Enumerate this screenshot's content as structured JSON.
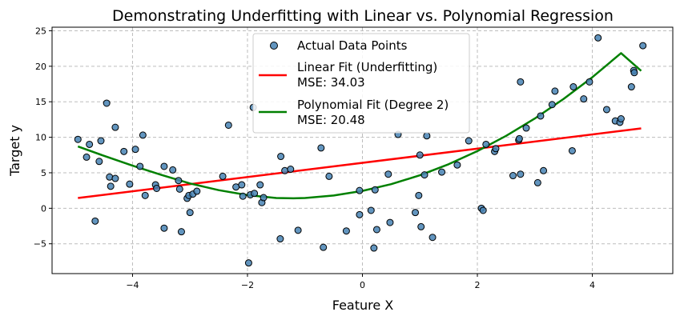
{
  "chart_data": {
    "type": "scatter",
    "title": "Demonstrating Underfitting with Linear vs. Polynomial Regression",
    "xlabel": "Feature X",
    "ylabel": "Target y",
    "xlim": [
      -5.4,
      5.4
    ],
    "ylim": [
      -9.2,
      25.5
    ],
    "xticks": [
      -4,
      -2,
      0,
      2,
      4
    ],
    "yticks": [
      -5,
      0,
      5,
      10,
      15,
      20,
      25
    ],
    "xtick_labels": [
      "−4",
      "−2",
      "0",
      "2",
      "4"
    ],
    "ytick_labels": [
      "−5",
      "0",
      "5",
      "10",
      "15",
      "20",
      "25"
    ],
    "grid": true,
    "legend_position": "upper-center",
    "colors": {
      "points": "#4682b4",
      "linear": "#ff0000",
      "poly": "#008000"
    },
    "legend": [
      {
        "label": "Actual Data Points"
      },
      {
        "label": "Linear Fit (Underfitting)",
        "sublabel": "MSE: 34.03"
      },
      {
        "label": "Polynomial Fit (Degree 2)",
        "sublabel": "MSE: 20.48"
      }
    ],
    "series": [
      {
        "name": "Actual Data Points",
        "kind": "scatter",
        "points": [
          [
            -4.95,
            9.7
          ],
          [
            -4.8,
            7.2
          ],
          [
            -4.75,
            9.0
          ],
          [
            -4.65,
            -1.8
          ],
          [
            -4.58,
            6.6
          ],
          [
            -4.55,
            9.5
          ],
          [
            -4.45,
            14.8
          ],
          [
            -4.4,
            4.4
          ],
          [
            -4.38,
            3.1
          ],
          [
            -4.3,
            11.4
          ],
          [
            -4.3,
            4.2
          ],
          [
            -4.15,
            8.0
          ],
          [
            -4.05,
            3.4
          ],
          [
            -3.95,
            8.3
          ],
          [
            -3.87,
            5.9
          ],
          [
            -3.82,
            10.3
          ],
          [
            -3.78,
            1.8
          ],
          [
            -3.6,
            3.3
          ],
          [
            -3.58,
            2.8
          ],
          [
            -3.45,
            5.9
          ],
          [
            -3.45,
            -2.8
          ],
          [
            -3.3,
            5.4
          ],
          [
            -3.2,
            3.9
          ],
          [
            -3.18,
            2.7
          ],
          [
            -3.15,
            -3.3
          ],
          [
            -3.05,
            1.4
          ],
          [
            -3.02,
            1.8
          ],
          [
            -3.0,
            -0.6
          ],
          [
            -2.95,
            2.0
          ],
          [
            -2.88,
            2.4
          ],
          [
            -2.43,
            4.5
          ],
          [
            -2.33,
            11.7
          ],
          [
            -2.2,
            3.0
          ],
          [
            -2.1,
            3.3
          ],
          [
            -2.08,
            1.7
          ],
          [
            -1.98,
            -7.7
          ],
          [
            -1.95,
            1.9
          ],
          [
            -1.9,
            14.2
          ],
          [
            -1.88,
            2.1
          ],
          [
            -1.78,
            3.3
          ],
          [
            -1.75,
            0.8
          ],
          [
            -1.72,
            1.5
          ],
          [
            -1.42,
            7.3
          ],
          [
            -1.43,
            -4.3
          ],
          [
            -1.35,
            5.3
          ],
          [
            -1.25,
            5.5
          ],
          [
            -1.12,
            -3.1
          ],
          [
            -0.72,
            8.5
          ],
          [
            -0.68,
            -5.5
          ],
          [
            -0.58,
            4.5
          ],
          [
            -0.28,
            -3.2
          ],
          [
            -0.05,
            -0.9
          ],
          [
            -0.05,
            2.5
          ],
          [
            0.15,
            -0.3
          ],
          [
            0.2,
            -5.6
          ],
          [
            0.22,
            2.6
          ],
          [
            0.25,
            -3.0
          ],
          [
            0.45,
            4.8
          ],
          [
            0.48,
            -2.0
          ],
          [
            0.62,
            10.4
          ],
          [
            0.92,
            -0.6
          ],
          [
            0.98,
            1.8
          ],
          [
            1.0,
            7.5
          ],
          [
            1.02,
            -2.6
          ],
          [
            1.08,
            4.7
          ],
          [
            1.12,
            10.2
          ],
          [
            1.22,
            -4.1
          ],
          [
            1.38,
            5.1
          ],
          [
            1.65,
            6.1
          ],
          [
            1.85,
            9.5
          ],
          [
            2.07,
            0.0
          ],
          [
            2.1,
            -0.3
          ],
          [
            2.15,
            9.0
          ],
          [
            2.3,
            8.0
          ],
          [
            2.32,
            8.4
          ],
          [
            2.62,
            4.6
          ],
          [
            2.72,
            9.6
          ],
          [
            2.73,
            9.8
          ],
          [
            2.75,
            4.8
          ],
          [
            2.75,
            17.8
          ],
          [
            2.85,
            11.3
          ],
          [
            3.05,
            3.6
          ],
          [
            3.1,
            13.0
          ],
          [
            3.15,
            5.3
          ],
          [
            3.3,
            14.6
          ],
          [
            3.35,
            16.5
          ],
          [
            3.65,
            8.1
          ],
          [
            3.67,
            17.1
          ],
          [
            3.85,
            15.4
          ],
          [
            3.95,
            17.8
          ],
          [
            4.1,
            24.0
          ],
          [
            4.25,
            13.9
          ],
          [
            4.4,
            12.3
          ],
          [
            4.48,
            12.1
          ],
          [
            4.5,
            12.6
          ],
          [
            4.68,
            17.1
          ],
          [
            4.72,
            19.4
          ],
          [
            4.73,
            19.1
          ],
          [
            4.88,
            22.9
          ]
        ]
      },
      {
        "name": "Linear Fit (Underfitting)",
        "kind": "line",
        "x": [
          -4.95,
          4.85
        ],
        "y": [
          1.45,
          11.25
        ]
      },
      {
        "name": "Polynomial Fit (Degree 2)",
        "kind": "line",
        "x": [
          -4.95,
          -4.5,
          -4.0,
          -3.5,
          -3.0,
          -2.5,
          -2.0,
          -1.5,
          -1.2,
          -1.0,
          -0.5,
          0.0,
          0.5,
          1.0,
          1.5,
          2.0,
          2.5,
          3.0,
          3.5,
          4.0,
          4.5,
          4.85
        ],
        "y": [
          8.7,
          7.4,
          6.0,
          4.7,
          3.5,
          2.55,
          1.85,
          1.45,
          1.4,
          1.45,
          1.8,
          2.45,
          3.4,
          4.65,
          6.2,
          8.05,
          10.2,
          12.65,
          15.4,
          18.45,
          21.85,
          19.35
        ]
      }
    ]
  }
}
